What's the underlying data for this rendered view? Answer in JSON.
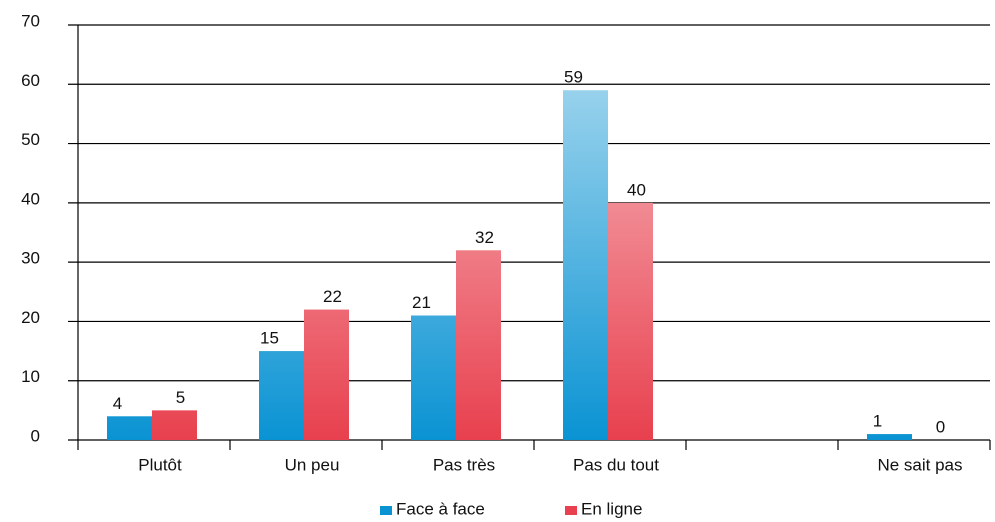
{
  "chart_data": {
    "type": "bar",
    "categories": [
      "Plutôt",
      "Un peu",
      "Pas très",
      "Pas du tout",
      null,
      "Ne sait pas"
    ],
    "series": [
      {
        "name": "Face à face",
        "color": "#0a93d3",
        "values": [
          4,
          15,
          21,
          59,
          null,
          1
        ]
      },
      {
        "name": "En ligne",
        "color": "#e8404e",
        "values": [
          5,
          22,
          32,
          40,
          null,
          0
        ]
      }
    ],
    "ylim": [
      0,
      70
    ],
    "yticks": [
      0,
      10,
      20,
      30,
      40,
      50,
      60,
      70
    ],
    "grid": true,
    "legend": "bottom"
  }
}
